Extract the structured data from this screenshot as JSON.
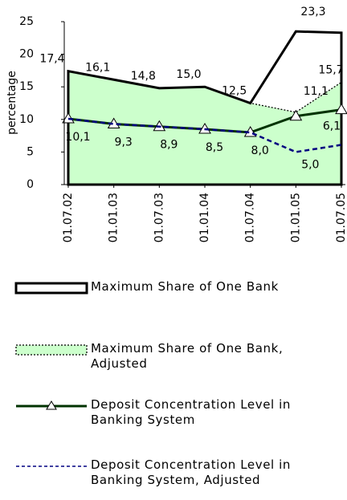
{
  "chart_data": {
    "type": "line",
    "y_label": "percentage",
    "categories": [
      "01.07.02",
      "01.01.03",
      "01.07.03",
      "01.01.04",
      "01.07.04",
      "01.01.05",
      "01.07.05"
    ],
    "ylim": [
      0,
      25
    ],
    "yticks": [
      0,
      5,
      10,
      15,
      20,
      25
    ],
    "series": [
      {
        "name": "Maximum Share of One Bank",
        "type": "area",
        "color": "#000000",
        "fill": "none",
        "values": [
          17.4,
          16.1,
          14.8,
          15.0,
          12.5,
          23.5,
          23.3
        ],
        "value_labels": [
          "17,4",
          "16,1",
          "14,8",
          "15,0",
          "12,5",
          null,
          "23,3"
        ]
      },
      {
        "name": "Maximum Share of One Bank, Adjusted",
        "type": "area",
        "color": "#000000",
        "fill": "#ccffcc",
        "dash": "dotted",
        "values": [
          17.4,
          16.1,
          14.8,
          15.0,
          12.5,
          11.1,
          15.7
        ],
        "value_labels": [
          null,
          null,
          null,
          null,
          null,
          "11,1",
          "15,7"
        ]
      },
      {
        "name": "Deposit Concentration Level in Banking System",
        "type": "line",
        "color": "#003300",
        "marker": "triangle",
        "values": [
          10.1,
          9.3,
          8.9,
          8.5,
          8.0,
          10.5,
          11.5
        ],
        "value_labels": [
          "10,1",
          "9,3",
          "8,9",
          "8,5",
          "8,0",
          null,
          null
        ]
      },
      {
        "name": "Deposit Concentration Level in Banking System, Adjusted",
        "type": "line",
        "color": "#000080",
        "dash": "dashed",
        "values": [
          10.1,
          9.3,
          8.9,
          8.5,
          8.0,
          5.0,
          6.1
        ],
        "value_labels": [
          null,
          null,
          null,
          null,
          null,
          "5,0",
          "6,1"
        ]
      }
    ]
  }
}
